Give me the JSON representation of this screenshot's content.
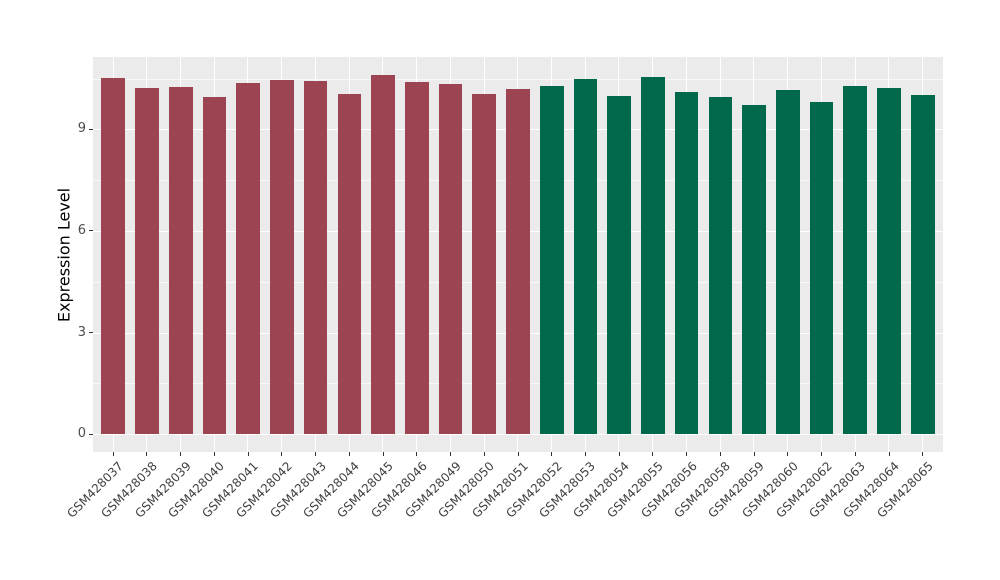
{
  "chart_data": {
    "type": "bar",
    "title": "",
    "xlabel": "",
    "ylabel": "Expression Level",
    "categories": [
      "GSM428037",
      "GSM428038",
      "GSM428039",
      "GSM428040",
      "GSM428041",
      "GSM428042",
      "GSM428043",
      "GSM428044",
      "GSM428045",
      "GSM428046",
      "GSM428049",
      "GSM428050",
      "GSM428051",
      "GSM428052",
      "GSM428053",
      "GSM428054",
      "GSM428055",
      "GSM428056",
      "GSM428058",
      "GSM428059",
      "GSM428060",
      "GSM428062",
      "GSM428063",
      "GSM428064",
      "GSM428065"
    ],
    "values": [
      10.51,
      10.21,
      10.24,
      9.95,
      10.37,
      10.45,
      10.43,
      10.05,
      10.61,
      10.39,
      10.33,
      10.04,
      10.19,
      10.29,
      10.5,
      9.99,
      10.56,
      10.11,
      9.97,
      9.73,
      10.16,
      9.81,
      10.28,
      10.21,
      10.02
    ],
    "bar_groups": [
      0,
      0,
      0,
      0,
      0,
      0,
      0,
      0,
      0,
      0,
      0,
      0,
      0,
      1,
      1,
      1,
      1,
      1,
      1,
      1,
      1,
      1,
      1,
      1,
      1
    ],
    "group_colors": [
      "#9D4452",
      "#00694B"
    ],
    "yticks": [
      0,
      3,
      6,
      9
    ],
    "yticks_minor": [
      1.5,
      4.5,
      7.5,
      10.5
    ],
    "ylim": [
      0,
      11.15
    ],
    "grid": true,
    "legend_position": "none",
    "panel_bg": "#EBEBEB",
    "grid_color": "#FFFFFF",
    "bar_width_frac": 0.7,
    "x_label_angle_deg": -45
  }
}
